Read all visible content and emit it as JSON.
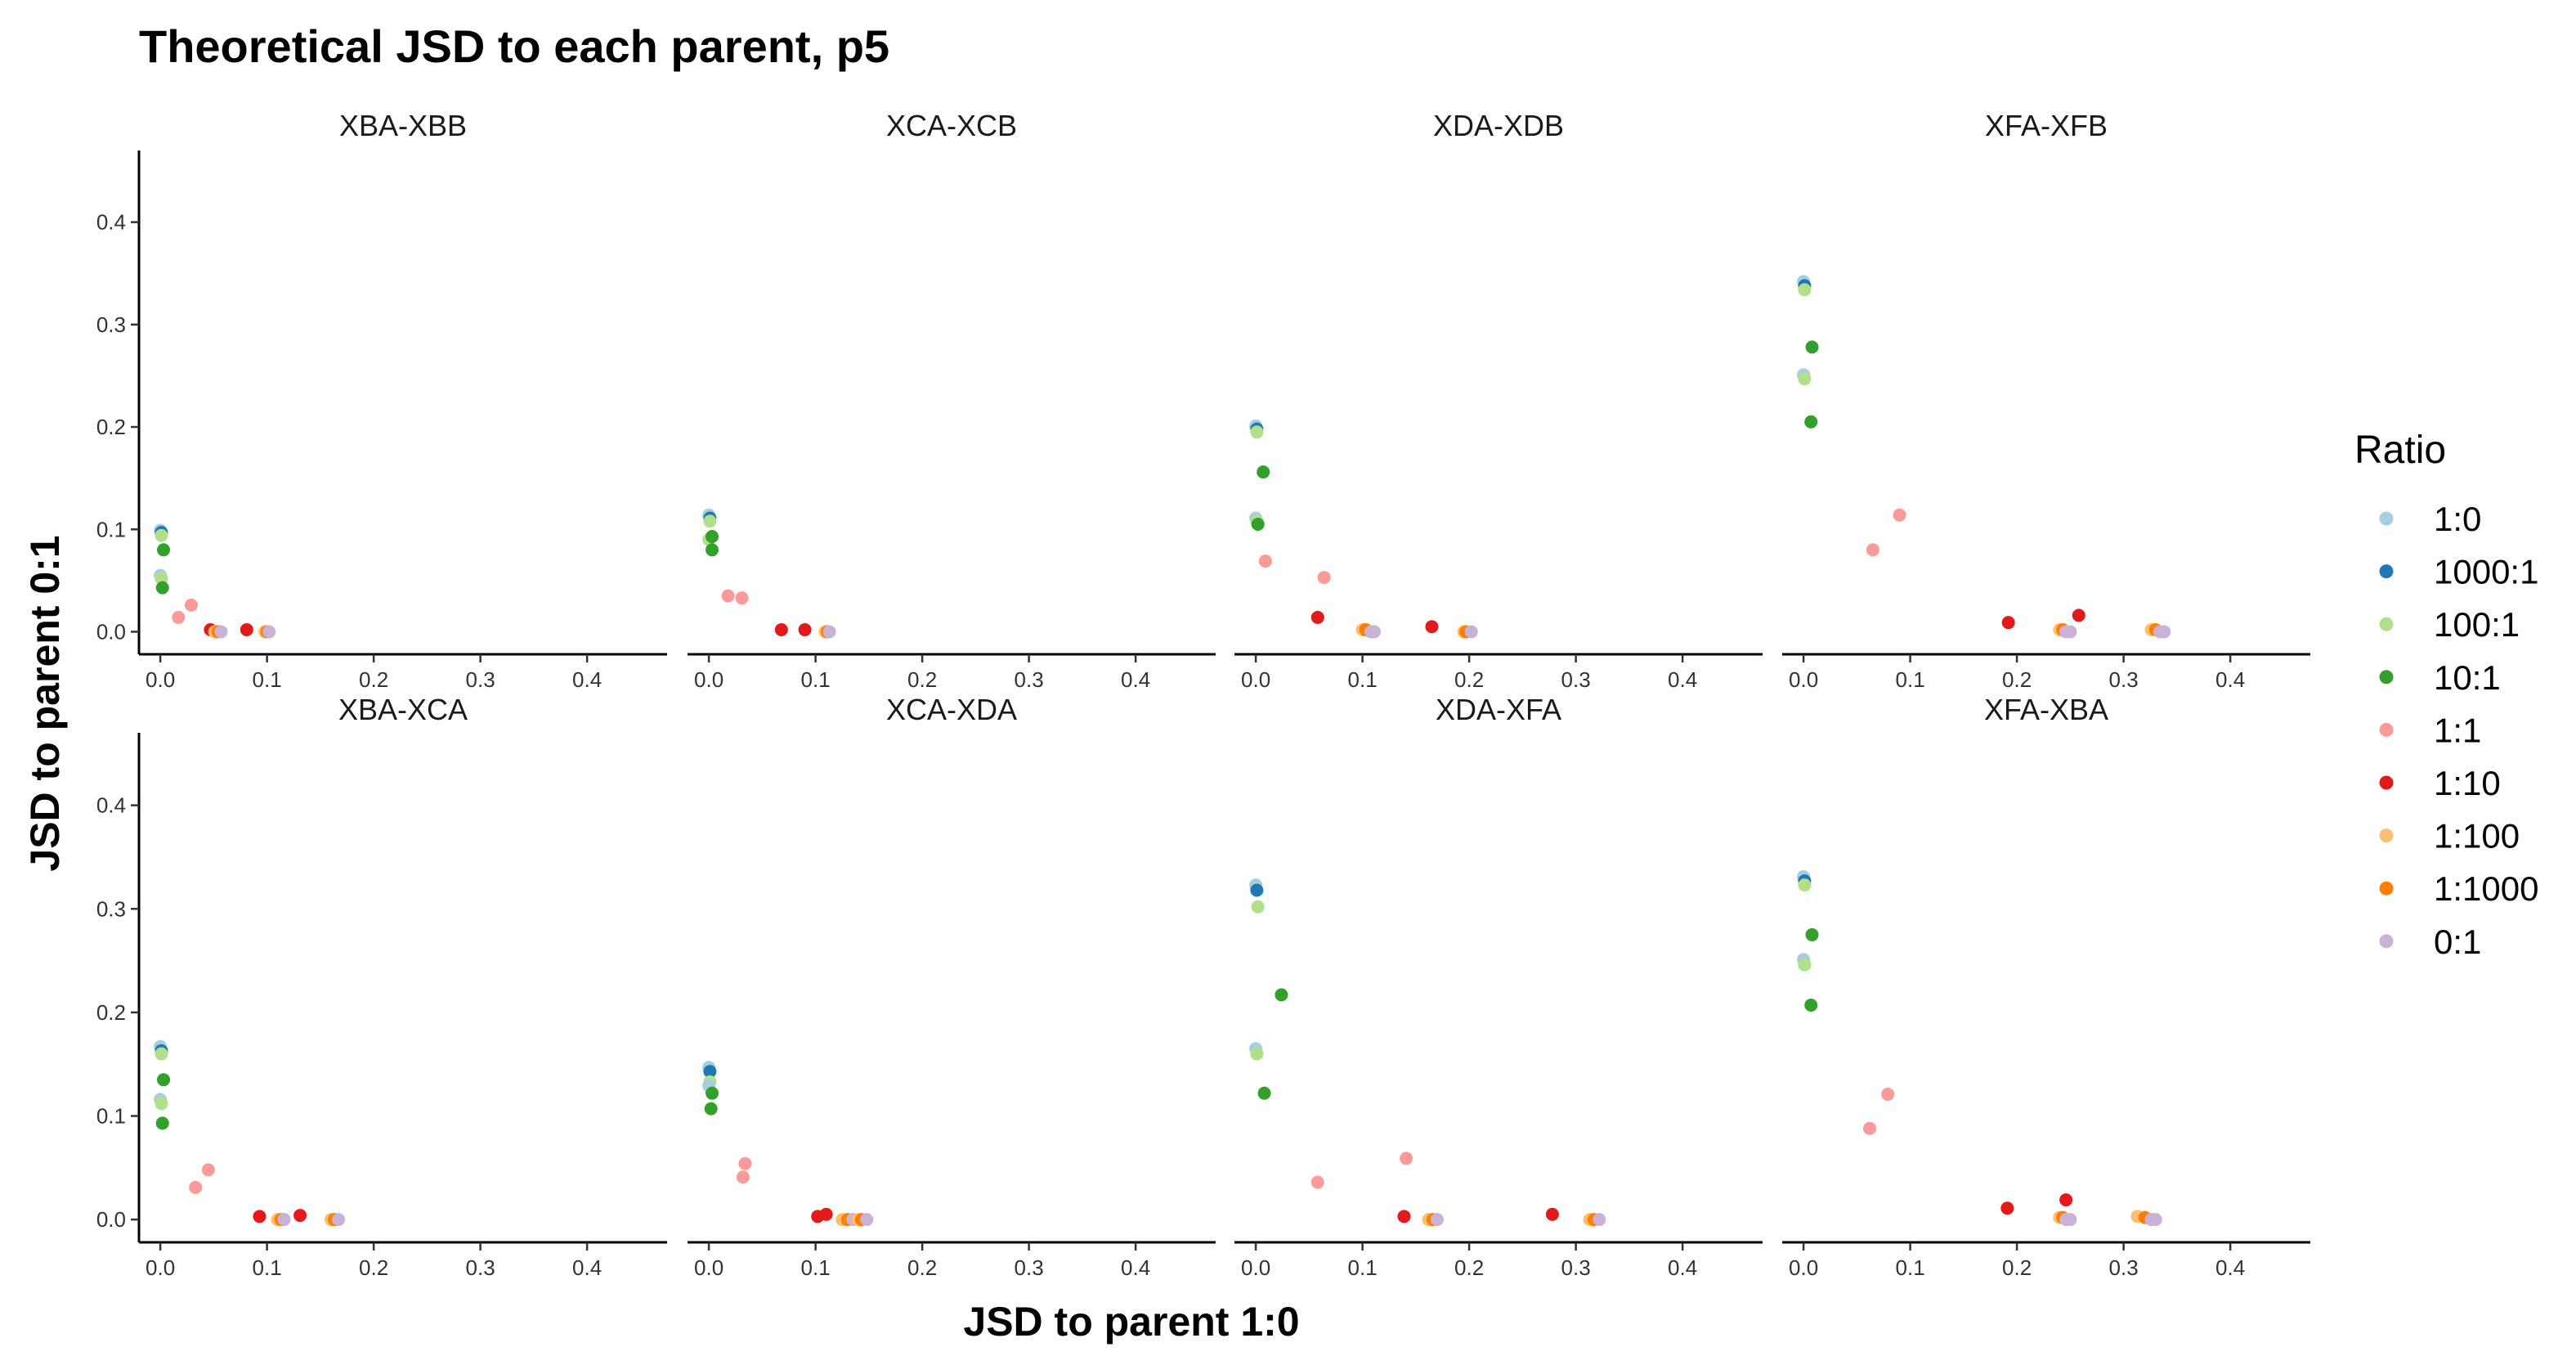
{
  "chart_data": {
    "type": "scatter",
    "title": "Theoretical JSD to each parent, p5",
    "xlabel": "JSD to parent 1:0",
    "ylabel": "JSD to parent 0:1",
    "xlim": [
      -0.02,
      0.475
    ],
    "ylim": [
      -0.022,
      0.47
    ],
    "xticks": [
      "0.0",
      "0.1",
      "0.2",
      "0.3",
      "0.4"
    ],
    "yticks": [
      "0.0",
      "0.1",
      "0.2",
      "0.3",
      "0.4"
    ],
    "legend": {
      "title": "Ratio",
      "position": "right",
      "entries": [
        {
          "label": "1:0",
          "color": "#A6CEE3"
        },
        {
          "label": "1000:1",
          "color": "#1F78B4"
        },
        {
          "label": "100:1",
          "color": "#B2DF8A"
        },
        {
          "label": "10:1",
          "color": "#33A02C"
        },
        {
          "label": "1:1",
          "color": "#FB9A99"
        },
        {
          "label": "1:10",
          "color": "#E31A1C"
        },
        {
          "label": "1:100",
          "color": "#FDBF6F"
        },
        {
          "label": "1:1000",
          "color": "#FF7F00"
        },
        {
          "label": "0:1",
          "color": "#CAB2D6"
        }
      ]
    },
    "panels": [
      {
        "label": "XBA-XBB",
        "points": [
          [
            0.0,
            0.099,
            0
          ],
          [
            0.001,
            0.097,
            1
          ],
          [
            0.001,
            0.094,
            2
          ],
          [
            0.0,
            0.055,
            0
          ],
          [
            0.001,
            0.052,
            2
          ],
          [
            0.003,
            0.08,
            3
          ],
          [
            0.002,
            0.043,
            3
          ],
          [
            0.017,
            0.014,
            4
          ],
          [
            0.029,
            0.026,
            4
          ],
          [
            0.047,
            0.002,
            5
          ],
          [
            0.081,
            0.002,
            5
          ],
          [
            0.051,
            0.0,
            6
          ],
          [
            0.054,
            0.0,
            7
          ],
          [
            0.057,
            0.0,
            8
          ],
          [
            0.098,
            0.0,
            6
          ],
          [
            0.1,
            0.0,
            7
          ],
          [
            0.102,
            0.0,
            8
          ]
        ]
      },
      {
        "label": "XCA-XCB",
        "points": [
          [
            0.0,
            0.114,
            0
          ],
          [
            0.001,
            0.111,
            1
          ],
          [
            0.001,
            0.108,
            2
          ],
          [
            0.0,
            0.09,
            2
          ],
          [
            0.003,
            0.093,
            3
          ],
          [
            0.003,
            0.08,
            3
          ],
          [
            0.018,
            0.035,
            4
          ],
          [
            0.031,
            0.033,
            4
          ],
          [
            0.068,
            0.002,
            5
          ],
          [
            0.09,
            0.002,
            5
          ],
          [
            0.109,
            0.0,
            6
          ],
          [
            0.111,
            0.0,
            7
          ],
          [
            0.113,
            0.0,
            8
          ]
        ]
      },
      {
        "label": "XDA-XDB",
        "points": [
          [
            0.0,
            0.201,
            0
          ],
          [
            0.001,
            0.198,
            1
          ],
          [
            0.001,
            0.195,
            2
          ],
          [
            0.0,
            0.111,
            0
          ],
          [
            0.001,
            0.108,
            2
          ],
          [
            0.007,
            0.156,
            3
          ],
          [
            0.002,
            0.105,
            3
          ],
          [
            0.009,
            0.069,
            4
          ],
          [
            0.064,
            0.053,
            4
          ],
          [
            0.058,
            0.014,
            5
          ],
          [
            0.165,
            0.005,
            5
          ],
          [
            0.1,
            0.002,
            6
          ],
          [
            0.103,
            0.002,
            7
          ],
          [
            0.108,
            0.0,
            8
          ],
          [
            0.111,
            0.0,
            8
          ],
          [
            0.195,
            0.0,
            6
          ],
          [
            0.197,
            0.0,
            7
          ],
          [
            0.202,
            0.0,
            8
          ]
        ]
      },
      {
        "label": "XFA-XFB",
        "points": [
          [
            0.0,
            0.342,
            0
          ],
          [
            0.001,
            0.338,
            1
          ],
          [
            0.001,
            0.334,
            2
          ],
          [
            0.0,
            0.251,
            0
          ],
          [
            0.001,
            0.247,
            2
          ],
          [
            0.008,
            0.278,
            3
          ],
          [
            0.007,
            0.205,
            3
          ],
          [
            0.065,
            0.08,
            4
          ],
          [
            0.09,
            0.114,
            4
          ],
          [
            0.192,
            0.009,
            5
          ],
          [
            0.258,
            0.016,
            5
          ],
          [
            0.24,
            0.002,
            6
          ],
          [
            0.243,
            0.002,
            7
          ],
          [
            0.246,
            0.0,
            8
          ],
          [
            0.25,
            0.0,
            8
          ],
          [
            0.326,
            0.002,
            6
          ],
          [
            0.33,
            0.002,
            7
          ],
          [
            0.334,
            0.0,
            8
          ],
          [
            0.338,
            0.0,
            8
          ]
        ]
      },
      {
        "label": "XBA-XCA",
        "points": [
          [
            0.0,
            0.167,
            0
          ],
          [
            0.001,
            0.163,
            1
          ],
          [
            0.001,
            0.16,
            2
          ],
          [
            0.0,
            0.116,
            0
          ],
          [
            0.001,
            0.112,
            2
          ],
          [
            0.003,
            0.135,
            3
          ],
          [
            0.002,
            0.093,
            3
          ],
          [
            0.033,
            0.031,
            4
          ],
          [
            0.045,
            0.048,
            4
          ],
          [
            0.093,
            0.003,
            5
          ],
          [
            0.131,
            0.004,
            5
          ],
          [
            0.11,
            0.0,
            6
          ],
          [
            0.113,
            0.0,
            7
          ],
          [
            0.116,
            0.0,
            8
          ],
          [
            0.16,
            0.0,
            6
          ],
          [
            0.163,
            0.0,
            7
          ],
          [
            0.167,
            0.0,
            8
          ]
        ]
      },
      {
        "label": "XCA-XDA",
        "points": [
          [
            0.0,
            0.147,
            0
          ],
          [
            0.001,
            0.143,
            1
          ],
          [
            0.001,
            0.133,
            2
          ],
          [
            0.0,
            0.129,
            0
          ],
          [
            0.003,
            0.122,
            3
          ],
          [
            0.002,
            0.107,
            3
          ],
          [
            0.034,
            0.054,
            4
          ],
          [
            0.032,
            0.041,
            4
          ],
          [
            0.102,
            0.003,
            5
          ],
          [
            0.11,
            0.005,
            5
          ],
          [
            0.125,
            0.0,
            6
          ],
          [
            0.13,
            0.0,
            7
          ],
          [
            0.135,
            0.0,
            8
          ],
          [
            0.14,
            0.0,
            6
          ],
          [
            0.143,
            0.0,
            7
          ],
          [
            0.148,
            0.0,
            8
          ]
        ]
      },
      {
        "label": "XDA-XFA",
        "points": [
          [
            0.0,
            0.323,
            0
          ],
          [
            0.001,
            0.318,
            1
          ],
          [
            0.002,
            0.302,
            2
          ],
          [
            0.0,
            0.165,
            0
          ],
          [
            0.001,
            0.16,
            2
          ],
          [
            0.024,
            0.217,
            3
          ],
          [
            0.008,
            0.122,
            3
          ],
          [
            0.058,
            0.036,
            4
          ],
          [
            0.141,
            0.059,
            4
          ],
          [
            0.139,
            0.003,
            5
          ],
          [
            0.278,
            0.005,
            5
          ],
          [
            0.162,
            0.0,
            6
          ],
          [
            0.166,
            0.0,
            7
          ],
          [
            0.17,
            0.0,
            8
          ],
          [
            0.313,
            0.0,
            6
          ],
          [
            0.317,
            0.0,
            7
          ],
          [
            0.322,
            0.0,
            8
          ]
        ]
      },
      {
        "label": "XFA-XBA",
        "points": [
          [
            0.0,
            0.331,
            0
          ],
          [
            0.001,
            0.327,
            1
          ],
          [
            0.001,
            0.323,
            2
          ],
          [
            0.0,
            0.251,
            0
          ],
          [
            0.001,
            0.246,
            2
          ],
          [
            0.008,
            0.275,
            3
          ],
          [
            0.007,
            0.207,
            3
          ],
          [
            0.062,
            0.088,
            4
          ],
          [
            0.079,
            0.121,
            4
          ],
          [
            0.191,
            0.011,
            5
          ],
          [
            0.246,
            0.019,
            5
          ],
          [
            0.24,
            0.002,
            6
          ],
          [
            0.243,
            0.002,
            7
          ],
          [
            0.246,
            0.0,
            8
          ],
          [
            0.25,
            0.0,
            8
          ],
          [
            0.313,
            0.003,
            6
          ],
          [
            0.32,
            0.002,
            7
          ],
          [
            0.326,
            0.0,
            8
          ],
          [
            0.33,
            0.0,
            8
          ]
        ]
      }
    ]
  }
}
